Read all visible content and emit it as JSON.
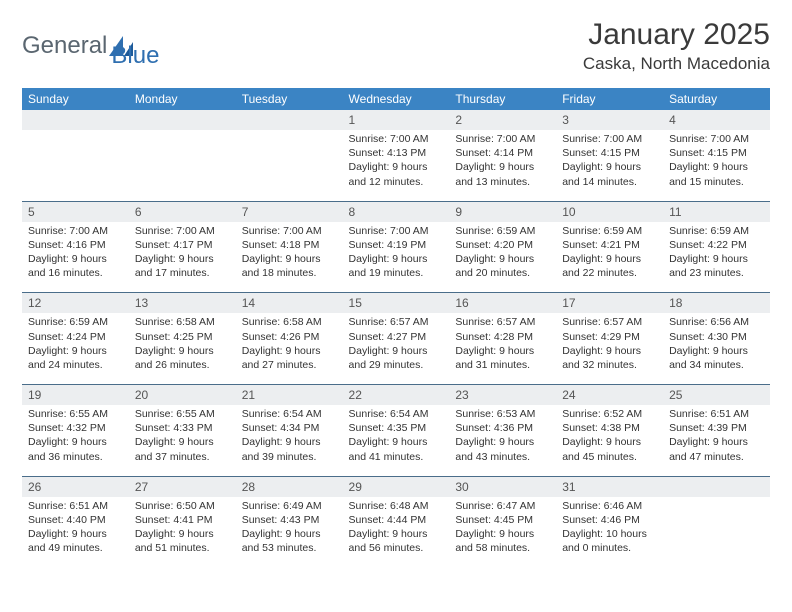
{
  "brand": {
    "word1": "General",
    "word2": "Blue"
  },
  "title": "January 2025",
  "location": "Caska, North Macedonia",
  "colors": {
    "header_bg": "#3b84c4",
    "header_text": "#ffffff",
    "daynum_bg": "#eceef0",
    "row_divider": "#4a6d8a",
    "body_text": "#333333",
    "logo_gray": "#5a6670",
    "logo_blue": "#2f6fb0"
  },
  "fonts": {
    "title_pt": 30,
    "location_pt": 17,
    "dayhead_pt": 12,
    "daynum_pt": 12,
    "cell_pt": 10.5
  },
  "day_headers": [
    "Sunday",
    "Monday",
    "Tuesday",
    "Wednesday",
    "Thursday",
    "Friday",
    "Saturday"
  ],
  "weeks": [
    {
      "nums": [
        "",
        "",
        "",
        "1",
        "2",
        "3",
        "4"
      ],
      "cells": [
        null,
        null,
        null,
        {
          "sunrise": "7:00 AM",
          "sunset": "4:13 PM",
          "daylight_h": 9,
          "daylight_m": 12
        },
        {
          "sunrise": "7:00 AM",
          "sunset": "4:14 PM",
          "daylight_h": 9,
          "daylight_m": 13
        },
        {
          "sunrise": "7:00 AM",
          "sunset": "4:15 PM",
          "daylight_h": 9,
          "daylight_m": 14
        },
        {
          "sunrise": "7:00 AM",
          "sunset": "4:15 PM",
          "daylight_h": 9,
          "daylight_m": 15
        }
      ]
    },
    {
      "nums": [
        "5",
        "6",
        "7",
        "8",
        "9",
        "10",
        "11"
      ],
      "cells": [
        {
          "sunrise": "7:00 AM",
          "sunset": "4:16 PM",
          "daylight_h": 9,
          "daylight_m": 16
        },
        {
          "sunrise": "7:00 AM",
          "sunset": "4:17 PM",
          "daylight_h": 9,
          "daylight_m": 17
        },
        {
          "sunrise": "7:00 AM",
          "sunset": "4:18 PM",
          "daylight_h": 9,
          "daylight_m": 18
        },
        {
          "sunrise": "7:00 AM",
          "sunset": "4:19 PM",
          "daylight_h": 9,
          "daylight_m": 19
        },
        {
          "sunrise": "6:59 AM",
          "sunset": "4:20 PM",
          "daylight_h": 9,
          "daylight_m": 20
        },
        {
          "sunrise": "6:59 AM",
          "sunset": "4:21 PM",
          "daylight_h": 9,
          "daylight_m": 22
        },
        {
          "sunrise": "6:59 AM",
          "sunset": "4:22 PM",
          "daylight_h": 9,
          "daylight_m": 23
        }
      ]
    },
    {
      "nums": [
        "12",
        "13",
        "14",
        "15",
        "16",
        "17",
        "18"
      ],
      "cells": [
        {
          "sunrise": "6:59 AM",
          "sunset": "4:24 PM",
          "daylight_h": 9,
          "daylight_m": 24
        },
        {
          "sunrise": "6:58 AM",
          "sunset": "4:25 PM",
          "daylight_h": 9,
          "daylight_m": 26
        },
        {
          "sunrise": "6:58 AM",
          "sunset": "4:26 PM",
          "daylight_h": 9,
          "daylight_m": 27
        },
        {
          "sunrise": "6:57 AM",
          "sunset": "4:27 PM",
          "daylight_h": 9,
          "daylight_m": 29
        },
        {
          "sunrise": "6:57 AM",
          "sunset": "4:28 PM",
          "daylight_h": 9,
          "daylight_m": 31
        },
        {
          "sunrise": "6:57 AM",
          "sunset": "4:29 PM",
          "daylight_h": 9,
          "daylight_m": 32
        },
        {
          "sunrise": "6:56 AM",
          "sunset": "4:30 PM",
          "daylight_h": 9,
          "daylight_m": 34
        }
      ]
    },
    {
      "nums": [
        "19",
        "20",
        "21",
        "22",
        "23",
        "24",
        "25"
      ],
      "cells": [
        {
          "sunrise": "6:55 AM",
          "sunset": "4:32 PM",
          "daylight_h": 9,
          "daylight_m": 36
        },
        {
          "sunrise": "6:55 AM",
          "sunset": "4:33 PM",
          "daylight_h": 9,
          "daylight_m": 37
        },
        {
          "sunrise": "6:54 AM",
          "sunset": "4:34 PM",
          "daylight_h": 9,
          "daylight_m": 39
        },
        {
          "sunrise": "6:54 AM",
          "sunset": "4:35 PM",
          "daylight_h": 9,
          "daylight_m": 41
        },
        {
          "sunrise": "6:53 AM",
          "sunset": "4:36 PM",
          "daylight_h": 9,
          "daylight_m": 43
        },
        {
          "sunrise": "6:52 AM",
          "sunset": "4:38 PM",
          "daylight_h": 9,
          "daylight_m": 45
        },
        {
          "sunrise": "6:51 AM",
          "sunset": "4:39 PM",
          "daylight_h": 9,
          "daylight_m": 47
        }
      ]
    },
    {
      "nums": [
        "26",
        "27",
        "28",
        "29",
        "30",
        "31",
        ""
      ],
      "cells": [
        {
          "sunrise": "6:51 AM",
          "sunset": "4:40 PM",
          "daylight_h": 9,
          "daylight_m": 49
        },
        {
          "sunrise": "6:50 AM",
          "sunset": "4:41 PM",
          "daylight_h": 9,
          "daylight_m": 51
        },
        {
          "sunrise": "6:49 AM",
          "sunset": "4:43 PM",
          "daylight_h": 9,
          "daylight_m": 53
        },
        {
          "sunrise": "6:48 AM",
          "sunset": "4:44 PM",
          "daylight_h": 9,
          "daylight_m": 56
        },
        {
          "sunrise": "6:47 AM",
          "sunset": "4:45 PM",
          "daylight_h": 9,
          "daylight_m": 58
        },
        {
          "sunrise": "6:46 AM",
          "sunset": "4:46 PM",
          "daylight_h": 10,
          "daylight_m": 0
        },
        null
      ]
    }
  ],
  "labels": {
    "sunrise": "Sunrise:",
    "sunset": "Sunset:",
    "daylight": "Daylight:",
    "hours_word": "hours",
    "and_word": "and",
    "minutes_word": "minutes."
  }
}
